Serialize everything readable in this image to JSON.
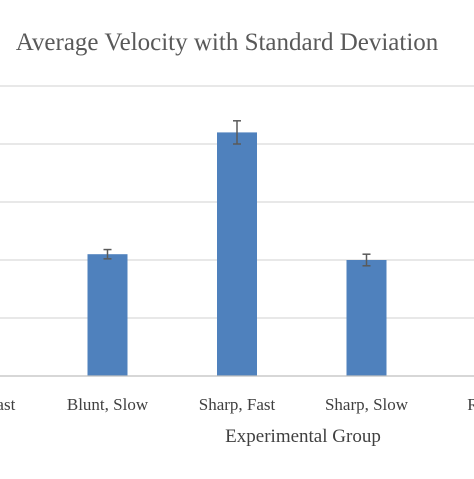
{
  "chart_data": {
    "type": "bar",
    "title": "Average Velocity with Standard Deviation",
    "xlabel": "Experimental Group",
    "ylabel": "",
    "categories": [
      "Blunt, Fast",
      "Blunt, Slow",
      "Sharp, Fast",
      "Sharp, Slow",
      "Random"
    ],
    "values": [
      null,
      2.1,
      4.2,
      2.0,
      null
    ],
    "errors": [
      null,
      0.08,
      0.2,
      0.1,
      null
    ],
    "ylim": [
      0,
      5.0
    ],
    "grid": true,
    "legend": "none",
    "colors": {
      "bar": "#4f81bd",
      "error_bar": "#5a5a5a",
      "grid": "#d9d9d9",
      "axis": "#bfbfbf",
      "title": "#595959"
    }
  }
}
